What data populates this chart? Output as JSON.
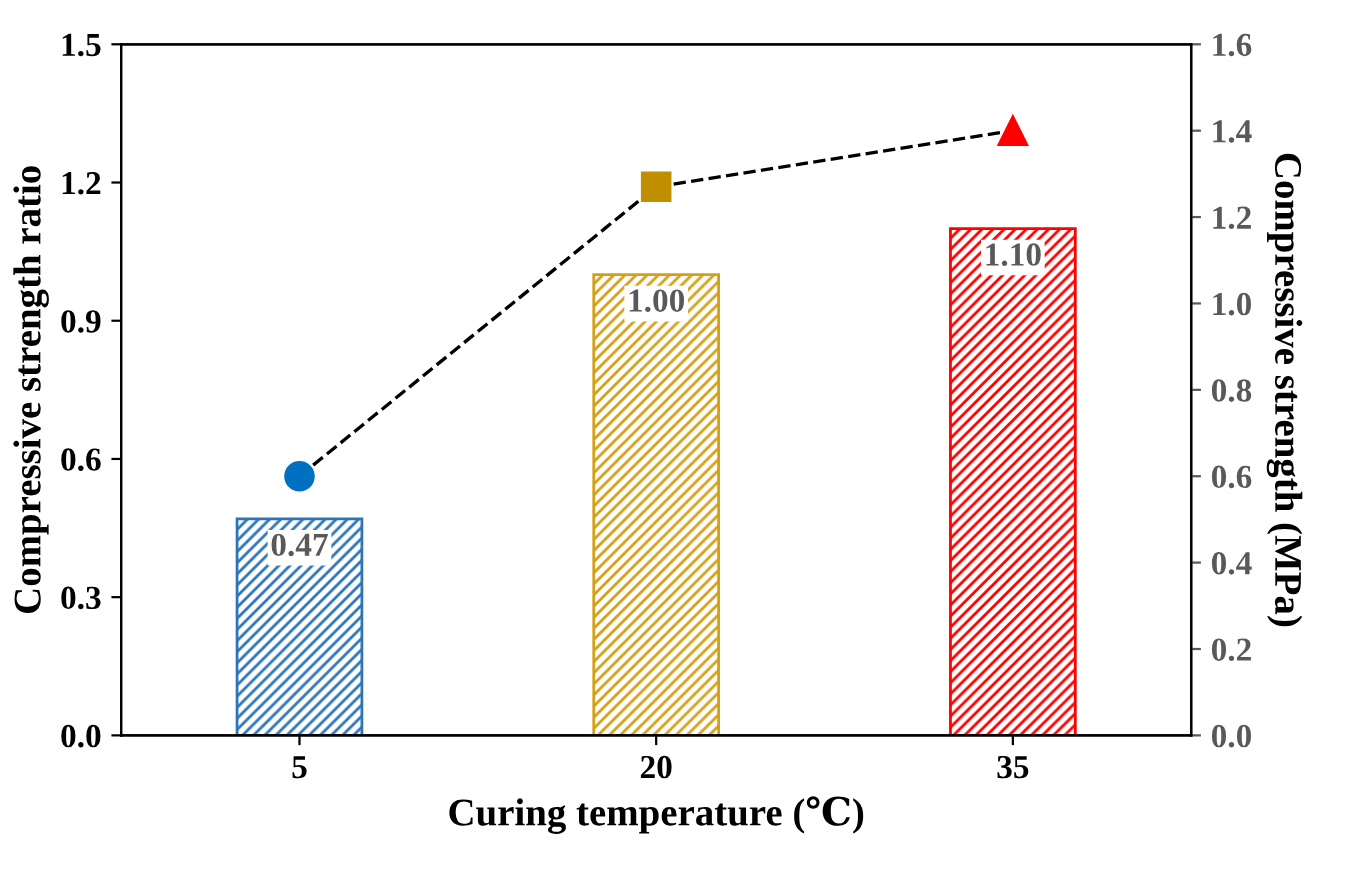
{
  "chart_data": {
    "type": "bar",
    "xlabel": "Curing temperature (℃)",
    "ylabel": "Compressive strength ratio",
    "y2label": "Compressive strength (MPa)",
    "categories": [
      "5",
      "20",
      "35"
    ],
    "series": [
      {
        "values": [
          0.47,
          1.0,
          1.1
        ],
        "colors": [
          "#2e75b6",
          "#d4a017",
          "#ff0000"
        ],
        "value_labels": [
          "0.47",
          "1.00",
          "1.10"
        ]
      },
      {
        "type": "line",
        "axis": "y2",
        "values": [
          0.6,
          1.27,
          1.4
        ],
        "color": "#000000",
        "colors": [
          "#0070c0",
          "#bf8f00",
          "#ff0000"
        ],
        "marker": [
          "circle",
          "square",
          "triangle"
        ],
        "line_style": "dashed"
      }
    ],
    "ylim": [
      0,
      1.5
    ],
    "yticks": [
      {
        "value": 0,
        "label": "0.0"
      },
      {
        "value": 0.3,
        "label": "0.3"
      },
      {
        "value": 0.6,
        "label": "0.6"
      },
      {
        "value": 0.9,
        "label": "0.9"
      },
      {
        "value": 1.2,
        "label": "1.2"
      },
      {
        "value": 1.5,
        "label": "1.5"
      }
    ],
    "y2lim": [
      0,
      1.6
    ],
    "y2ticks": [
      {
        "value": 0,
        "label": "0.0"
      },
      {
        "value": 0.2,
        "label": "0.2"
      },
      {
        "value": 0.4,
        "label": "0.4"
      },
      {
        "value": 0.6,
        "label": "0.6"
      },
      {
        "value": 0.8,
        "label": "0.8"
      },
      {
        "value": 1.0,
        "label": "1.0"
      },
      {
        "value": 1.2,
        "label": "1.2"
      },
      {
        "value": 1.4,
        "label": "1.4"
      },
      {
        "value": 1.6,
        "label": "1.6"
      }
    ],
    "grid": false,
    "legend": false
  }
}
